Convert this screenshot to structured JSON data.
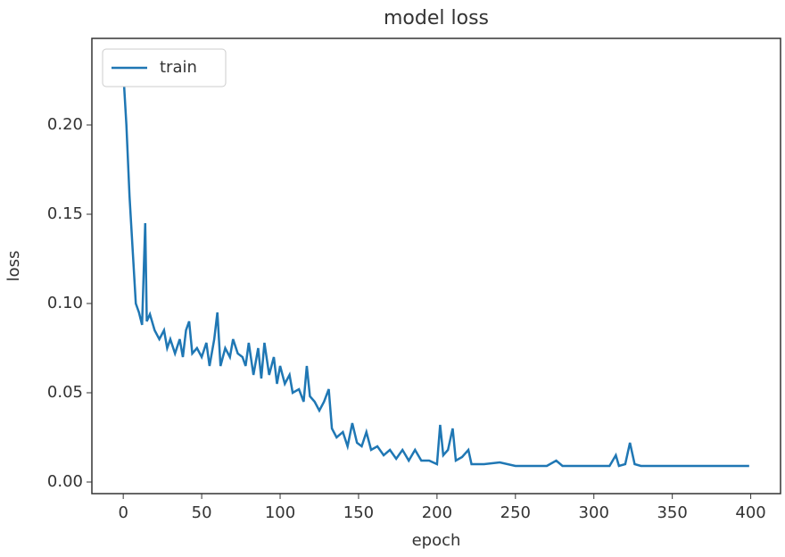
{
  "chart_data": {
    "type": "line",
    "title": "model loss",
    "xlabel": "epoch",
    "ylabel": "loss",
    "x": [
      0,
      2,
      4,
      6,
      8,
      10,
      12,
      14,
      15,
      17,
      20,
      23,
      26,
      28,
      30,
      33,
      36,
      38,
      40,
      42,
      44,
      47,
      50,
      53,
      55,
      58,
      60,
      62,
      65,
      68,
      70,
      73,
      76,
      78,
      80,
      83,
      86,
      88,
      90,
      93,
      96,
      98,
      100,
      103,
      106,
      108,
      112,
      115,
      117,
      119,
      122,
      125,
      128,
      131,
      133,
      136,
      140,
      143,
      146,
      149,
      152,
      155,
      158,
      162,
      166,
      170,
      174,
      178,
      182,
      186,
      190,
      195,
      200,
      202,
      204,
      207,
      210,
      212,
      216,
      220,
      222,
      230,
      240,
      250,
      260,
      270,
      276,
      280,
      290,
      300,
      310,
      314,
      316,
      320,
      323,
      326,
      330,
      340,
      350,
      360,
      370,
      380,
      390,
      399
    ],
    "series": [
      {
        "name": "train",
        "color": "#1f77b4",
        "values": [
          0.23,
          0.2,
          0.16,
          0.13,
          0.1,
          0.095,
          0.088,
          0.145,
          0.09,
          0.094,
          0.085,
          0.08,
          0.085,
          0.075,
          0.08,
          0.072,
          0.08,
          0.07,
          0.085,
          0.09,
          0.072,
          0.075,
          0.07,
          0.078,
          0.065,
          0.08,
          0.095,
          0.065,
          0.075,
          0.07,
          0.08,
          0.072,
          0.07,
          0.065,
          0.078,
          0.06,
          0.075,
          0.058,
          0.078,
          0.06,
          0.07,
          0.055,
          0.065,
          0.055,
          0.06,
          0.05,
          0.052,
          0.045,
          0.065,
          0.048,
          0.045,
          0.04,
          0.045,
          0.052,
          0.03,
          0.025,
          0.028,
          0.02,
          0.033,
          0.022,
          0.02,
          0.028,
          0.018,
          0.02,
          0.015,
          0.018,
          0.013,
          0.018,
          0.012,
          0.018,
          0.012,
          0.012,
          0.01,
          0.032,
          0.015,
          0.018,
          0.03,
          0.012,
          0.014,
          0.018,
          0.01,
          0.01,
          0.011,
          0.009,
          0.009,
          0.009,
          0.012,
          0.009,
          0.009,
          0.009,
          0.009,
          0.015,
          0.009,
          0.01,
          0.022,
          0.01,
          0.009,
          0.009,
          0.009,
          0.009,
          0.009,
          0.009,
          0.009,
          0.009
        ]
      }
    ],
    "xlim": [
      -20,
      419
    ],
    "ylim": [
      -0.0065,
      0.2485
    ],
    "xticks": [
      0,
      50,
      100,
      150,
      200,
      250,
      300,
      350,
      400
    ],
    "yticks": [
      {
        "value": 0,
        "label": "0.00"
      },
      0.05,
      {
        "value": 0.1,
        "label": "0.10"
      },
      0.15,
      {
        "value": 0.2,
        "label": "0.20"
      }
    ],
    "legend": "upper left"
  }
}
